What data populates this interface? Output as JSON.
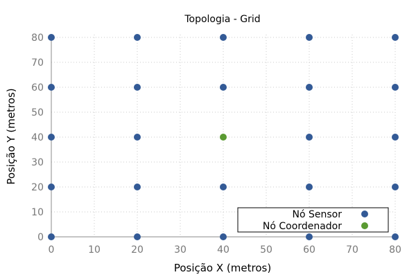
{
  "chart_data": {
    "type": "scatter",
    "title": "Topologia - Grid",
    "xlabel": "Posição X (metros)",
    "ylabel": "Posição Y (metros)",
    "xlim": [
      0,
      80
    ],
    "ylim": [
      0,
      80
    ],
    "xticks": [
      0,
      10,
      20,
      30,
      40,
      50,
      60,
      70,
      80
    ],
    "yticks": [
      0,
      10,
      20,
      30,
      40,
      50,
      60,
      70,
      80
    ],
    "grid": true,
    "legend_position": "bottom-right",
    "series": [
      {
        "name": "Nó Sensor",
        "color": "#335a96",
        "points": [
          [
            0,
            0
          ],
          [
            20,
            0
          ],
          [
            40,
            0
          ],
          [
            60,
            0
          ],
          [
            80,
            0
          ],
          [
            0,
            20
          ],
          [
            20,
            20
          ],
          [
            40,
            20
          ],
          [
            60,
            20
          ],
          [
            80,
            20
          ],
          [
            0,
            40
          ],
          [
            20,
            40
          ],
          [
            60,
            40
          ],
          [
            80,
            40
          ],
          [
            0,
            60
          ],
          [
            20,
            60
          ],
          [
            40,
            60
          ],
          [
            60,
            60
          ],
          [
            80,
            60
          ],
          [
            0,
            80
          ],
          [
            20,
            80
          ],
          [
            40,
            80
          ],
          [
            60,
            80
          ],
          [
            80,
            80
          ]
        ]
      },
      {
        "name": "Nó Coordenador",
        "color": "#5a9a32",
        "points": [
          [
            40,
            40
          ]
        ]
      }
    ]
  }
}
